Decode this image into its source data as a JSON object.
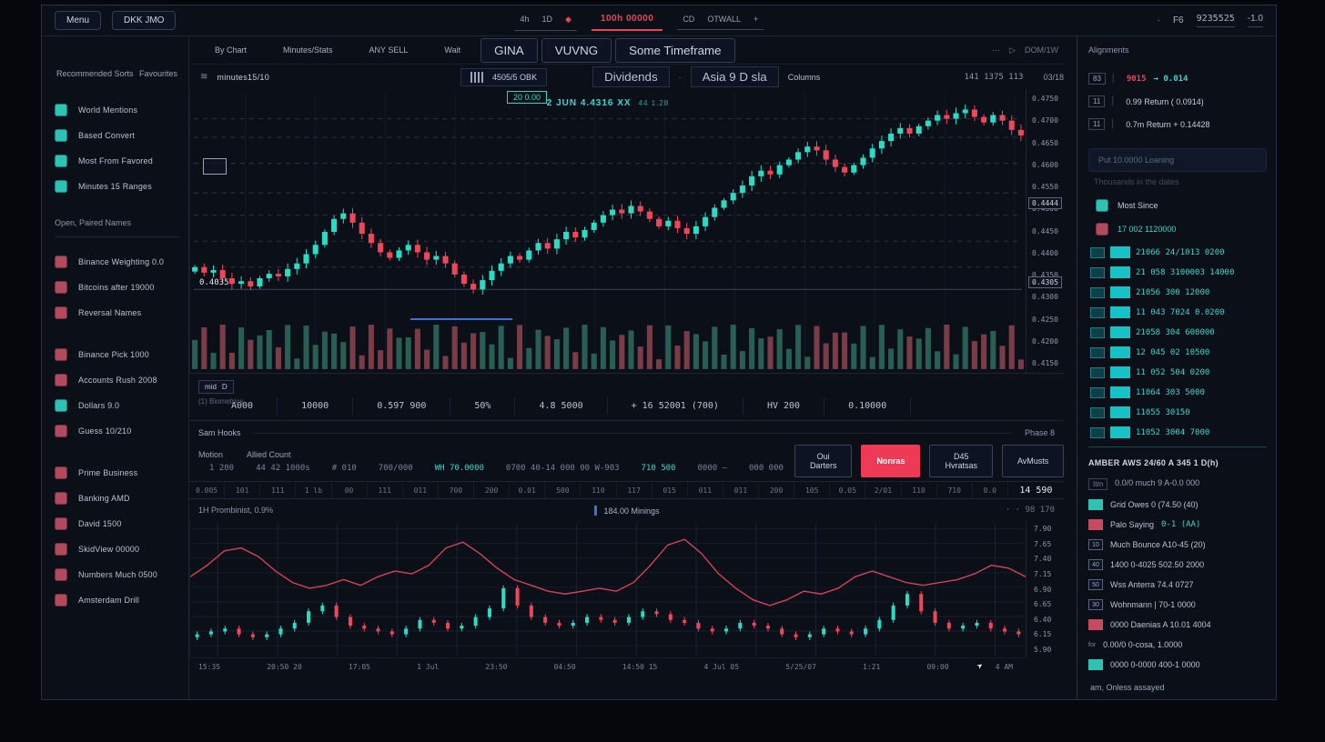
{
  "topbar": {
    "left_buttons": [
      "Menu",
      "DKK JMO"
    ],
    "tf_tabs": [
      "4h",
      "1D"
    ],
    "diamond_icon": "◆",
    "active_tab": "100h 00000",
    "tab2_prefix": "CD",
    "tab2": "OTWALL",
    "plus": "+",
    "right": {
      "dot": "·",
      "label": "F6",
      "value": "9235525",
      "change": "-1.0"
    }
  },
  "left_sidebar": {
    "tabs": [
      "Recommended Sorts",
      "Favourites"
    ],
    "primary_items": [
      {
        "color": "teal",
        "label": "World Mentions"
      },
      {
        "color": "teal",
        "label": "Based Convert"
      },
      {
        "color": "teal",
        "label": "Most From Favored"
      },
      {
        "color": "teal",
        "label": "Minutes 15 Ranges"
      }
    ],
    "section_title": "Open,  Paired Names",
    "group_a": [
      {
        "color": "red",
        "label": "Binance Weighting 0.0"
      },
      {
        "color": "red",
        "label": "Bitcoins after 19000"
      },
      {
        "color": "red",
        "label": "Reversal Names"
      }
    ],
    "group_b": [
      {
        "color": "red",
        "label": "Binance Pick 1000"
      },
      {
        "color": "red",
        "label": "Accounts Rush 2008"
      },
      {
        "color": "teal",
        "label": "Dollars 9.0"
      },
      {
        "color": "red",
        "label": "Guess 10/210"
      }
    ],
    "group_c": [
      {
        "color": "red",
        "label": "Prime Business"
      },
      {
        "color": "red",
        "label": "Banking AMD"
      },
      {
        "color": "red",
        "label": "David 1500"
      },
      {
        "color": "red",
        "label": "SkidView 00000"
      },
      {
        "color": "red",
        "label": "Numbers Much 0500"
      },
      {
        "color": "red",
        "label": "Amsterdam Drill"
      }
    ]
  },
  "chart_panel": {
    "tabs": [
      "By Chart",
      "Minutes/Stats",
      "ANY SELL",
      "Wait"
    ],
    "boxed_buttons": [
      "GINA",
      "VUVNG",
      "Some Timeframe"
    ],
    "right_icons": {
      "dots": "⋯",
      "play": "▷",
      "label": "DOM/1W"
    },
    "symbol_icon": "≋",
    "symbol": "minutes15/10",
    "qr_value": "4505/5 OBK",
    "mid_buttons": [
      "Dividends",
      "Asia 9 D sla"
    ],
    "mid_plain": "Columns",
    "dot": "·",
    "right_info_a": "141 1375 113",
    "right_info_b": "03/18",
    "overlay": {
      "badge": "20 0.00",
      "ohlc": "2 JUN 4.4316 XX",
      "ohlc_extra": "44 1.28",
      "left_price": "0.4035"
    }
  },
  "stats_bar": {
    "chip_a": "mid",
    "chip_b": "D",
    "sub_label": "(1) Biometrics",
    "cells": [
      "A000",
      "10000",
      "0.597 900",
      "50%",
      "4.8 5000",
      "+ 16 52001 (700)",
      "HV 200",
      "0.10000"
    ]
  },
  "orders_panel": {
    "title": "Sam Hooks",
    "phase": "Phase 8",
    "labels": [
      "Motion",
      "Allied Count"
    ],
    "stat_cells": [
      {
        "t": "1 200",
        "cls": ""
      },
      {
        "t": "44 42 1000s",
        "cls": ""
      },
      {
        "t": "# 010",
        "cls": ""
      },
      {
        "t": "700/000",
        "cls": ""
      },
      {
        "t": "WH 70.0000",
        "cls": "teal"
      },
      {
        "t": "0700 40-14 000 00 W-903",
        "cls": ""
      },
      {
        "t": "710 500",
        "cls": "teal"
      },
      {
        "t": "0000 —",
        "cls": ""
      },
      {
        "t": "000 000",
        "cls": ""
      }
    ],
    "buttons": [
      {
        "label": "Oui Darters",
        "style": "outline"
      },
      {
        "label": "Nonras",
        "style": "danger"
      },
      {
        "label": "D45 Hvratsas",
        "style": "outline"
      },
      {
        "label": "AvMusts",
        "style": "outline"
      }
    ],
    "ticker_cells": [
      "0.005",
      "101",
      "111",
      "1 lb",
      "00",
      "111",
      "011",
      "700",
      "200",
      "0.01",
      "500",
      "110",
      "117",
      "015",
      "011",
      "011",
      "200",
      "105",
      "0.05",
      "2/01",
      "110",
      "710",
      "0.0",
      "14 590"
    ]
  },
  "sub_panel": {
    "title": "1H Prombinist, 0.9%",
    "legend": "184.00 Minings",
    "right_info": "· ·  98 170"
  },
  "right_sidebar": {
    "title": "Alignments",
    "stats": [
      {
        "badge": "83",
        "sep": "▏",
        "parts": {
          "a": "9015",
          "b": "→ 0.014"
        }
      },
      {
        "badge": "11",
        "sep": "▏",
        "plain": "0.99 Return ( 0.0914)"
      },
      {
        "badge": "11",
        "sep": "▏",
        "plain": "0.7m Return + 0.14428"
      }
    ],
    "search_placeholder": "Put 10.0000 Loaning",
    "search_hint": "Thousands in the dates",
    "quick_items": [
      {
        "color": "teal",
        "label": "Most Since",
        "cls": "lab"
      },
      {
        "color": "red",
        "label": "17 002 1120000",
        "cls": "lab tealtxt"
      }
    ],
    "book_rows": [
      "21066 24/1013 0200",
      "21 058 3100003 14000",
      "21056 300 12000",
      "11 043 7024 0.0200",
      "21058 304 600000",
      "12 045 02 10500",
      "11 052 504 0200",
      "11064 303 5000",
      "11055 30150",
      "11052 3004 7000"
    ],
    "section2": {
      "title": "AMBER AWS 24/60 A 345 1 D(h)",
      "lead_badge": "Itm",
      "lead": "0.0/0 much 9 A-0.0 000",
      "rows": [
        {
          "icon": "teal",
          "label": "Grid Owes 0 (74.50 (40)"
        },
        {
          "icon": "red",
          "label": "Palo Saying",
          "value": "0-1 (AA)"
        },
        {
          "icon": "outline",
          "badge": "10",
          "label": "Much Bounce A10-45 (20)"
        },
        {
          "icon": "outline",
          "badge": "40",
          "label": "1400 0-4025 502.50 2000"
        },
        {
          "icon": "outline",
          "badge": "50",
          "label": "Wss Anterra 74.4 0727"
        },
        {
          "icon": "outline",
          "badge": "30",
          "label": "Wohnmann | 70-1 0000"
        },
        {
          "icon": "red",
          "label": "0000 Daenias A 10.01 4004"
        },
        {
          "icon": "text",
          "badge": "for",
          "label": "0.00/0 0-cosa, 1.0000"
        },
        {
          "icon": "teal",
          "label": "0000 0-0000 400-1 0000"
        }
      ],
      "footer": "am,  Onless assayed"
    }
  },
  "chart_data": [
    {
      "type": "candlestick",
      "title": "Main price chart with volume",
      "price_range": [
        0.418,
        0.476
      ],
      "base_price": 0.424,
      "gridline_prices": [
        0.47,
        0.465,
        0.458,
        0.45,
        0.444,
        0.437,
        0.43
      ],
      "up_color": "#2bdcc5",
      "down_color": "#f04659",
      "vol_up": "#2f6d5e",
      "vol_down": "#8e4450",
      "closes": [
        0.43,
        0.4285,
        0.4292,
        0.427,
        0.4255,
        0.4262,
        0.4248,
        0.427,
        0.4282,
        0.4275,
        0.4295,
        0.431,
        0.4335,
        0.436,
        0.4395,
        0.443,
        0.4445,
        0.442,
        0.439,
        0.4365,
        0.434,
        0.4325,
        0.4345,
        0.436,
        0.434,
        0.432,
        0.433,
        0.431,
        0.428,
        0.4255,
        0.424,
        0.4265,
        0.429,
        0.431,
        0.433,
        0.432,
        0.4345,
        0.4365,
        0.435,
        0.4375,
        0.4395,
        0.438,
        0.44,
        0.442,
        0.444,
        0.4455,
        0.4445,
        0.4465,
        0.445,
        0.443,
        0.441,
        0.4425,
        0.4405,
        0.439,
        0.441,
        0.4435,
        0.446,
        0.448,
        0.45,
        0.452,
        0.4545,
        0.456,
        0.455,
        0.4575,
        0.459,
        0.461,
        0.4625,
        0.4615,
        0.459,
        0.457,
        0.4555,
        0.4575,
        0.4595,
        0.462,
        0.464,
        0.466,
        0.4675,
        0.466,
        0.468,
        0.4695,
        0.471,
        0.47,
        0.4715,
        0.4725,
        0.4705,
        0.469,
        0.471,
        0.4695,
        0.467,
        0.4655
      ],
      "y_axis_labels": [
        "0.4750",
        "0.4700",
        "0.4650",
        "0.4600",
        "0.4550",
        "0.4500",
        "0.4450",
        "0.4400",
        "0.4350",
        "0.4300",
        "0.4250",
        "0.4200",
        "0.4150"
      ],
      "axis_tags": [
        {
          "text": "0.4444",
          "pos": 38
        },
        {
          "text": "0.4305",
          "pos": 66
        }
      ]
    },
    {
      "type": "line+candlestick",
      "title": "Indicator sub-chart",
      "y_range": [
        5.8,
        8.0
      ],
      "line_color": "#e0485a",
      "line": [
        7.1,
        7.3,
        7.55,
        7.6,
        7.45,
        7.2,
        7.0,
        6.9,
        6.95,
        7.05,
        6.95,
        7.1,
        7.2,
        7.15,
        7.3,
        7.6,
        7.7,
        7.5,
        7.25,
        7.05,
        6.95,
        6.85,
        6.8,
        6.85,
        6.9,
        6.85,
        7.0,
        7.3,
        7.65,
        7.75,
        7.5,
        7.15,
        6.9,
        6.7,
        6.6,
        6.7,
        6.85,
        6.8,
        6.9,
        7.1,
        7.2,
        7.1,
        7.0,
        6.95,
        7.0,
        7.05,
        7.15,
        7.3,
        7.25,
        7.1
      ],
      "candle_closes": [
        6.1,
        6.15,
        6.2,
        6.1,
        6.05,
        6.1,
        6.2,
        6.3,
        6.5,
        6.6,
        6.4,
        6.25,
        6.2,
        6.15,
        6.1,
        6.2,
        6.35,
        6.3,
        6.2,
        6.25,
        6.4,
        6.55,
        6.9,
        6.6,
        6.4,
        6.3,
        6.25,
        6.3,
        6.4,
        6.35,
        6.3,
        6.4,
        6.5,
        6.45,
        6.35,
        6.3,
        6.2,
        6.15,
        6.2,
        6.3,
        6.25,
        6.2,
        6.1,
        6.05,
        6.1,
        6.2,
        6.15,
        6.1,
        6.2,
        6.35,
        6.6,
        6.8,
        6.5,
        6.3,
        6.2,
        6.25,
        6.3,
        6.2,
        6.15,
        6.1
      ],
      "y_axis_labels": [
        "7.90",
        "7.65",
        "7.40",
        "7.15",
        "6.90",
        "6.65",
        "6.40",
        "6.15",
        "5.90"
      ],
      "x_axis_labels": [
        "15:35",
        "20:50 20",
        "17:05",
        "1 Jul",
        "23:50",
        "04:50",
        "14:50 15",
        "4 Jul 05",
        "5/25/07",
        "1:21",
        "09:00",
        "4 AM"
      ]
    }
  ],
  "colors": {
    "accent_teal": "#2fd3c2",
    "accent_red": "#e8455a",
    "sell_button": "#ef3a55"
  }
}
